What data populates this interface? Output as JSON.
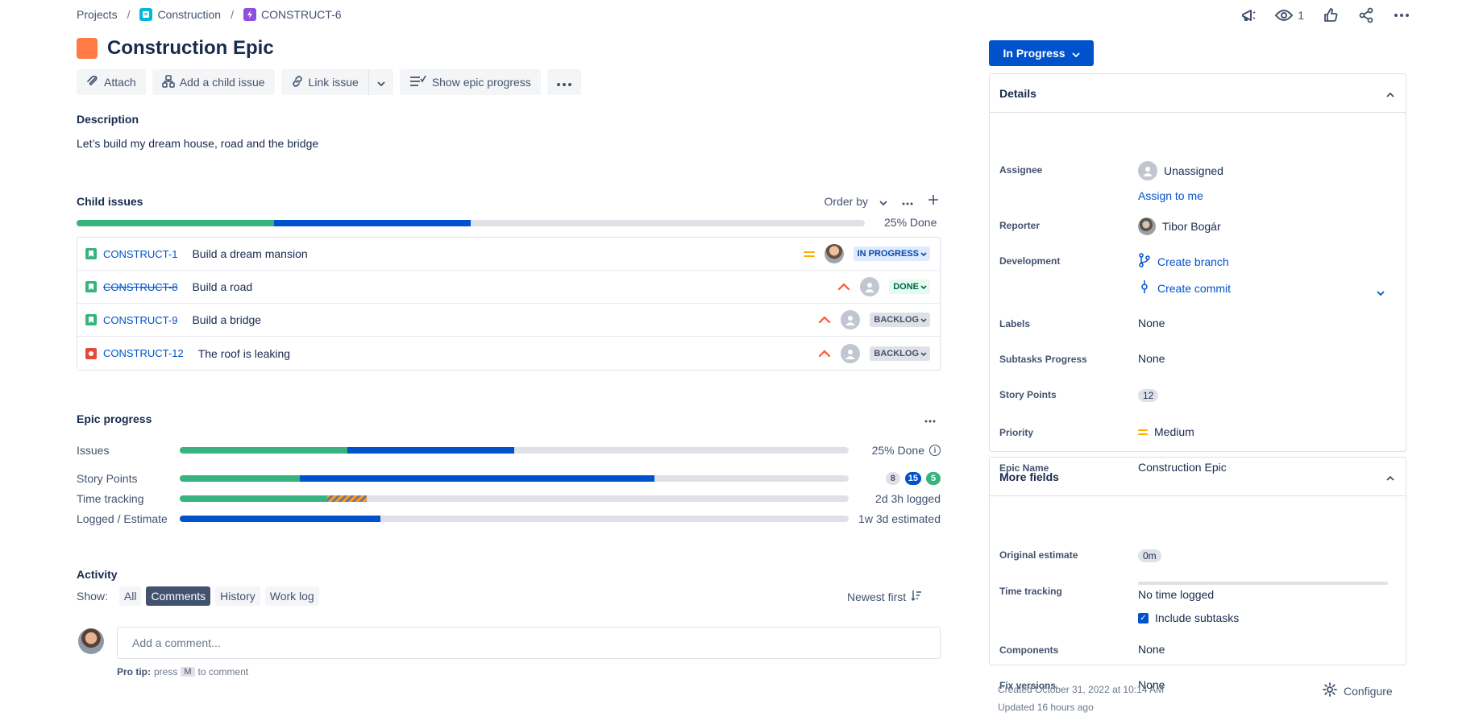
{
  "breadcrumb": {
    "projects": "Projects",
    "project": "Construction",
    "issue_key": "CONSTRUCT-6"
  },
  "header": {
    "watch_count": "1",
    "title": "Construction Epic",
    "icons": [
      "feedback-icon",
      "eye-icon",
      "thumbs-up-icon",
      "share-icon",
      "more-icon"
    ]
  },
  "toolbar": {
    "attach": "Attach",
    "add_child": "Add a child issue",
    "link_issue": "Link issue",
    "show_epic_progress": "Show epic progress"
  },
  "description": {
    "label": "Description",
    "text": "Let’s build my dream house, road and the bridge"
  },
  "child_issues": {
    "label": "Child issues",
    "order_by": "Order by",
    "done_label": "25% Done",
    "progress": {
      "done": 0.25,
      "in_progress": 0.25
    },
    "rows": [
      {
        "type": "story",
        "key": "CONSTRUCT-1",
        "summary": "Build a dream mansion",
        "priority": "medium",
        "assignee": "photo",
        "status": "IN PROGRESS",
        "resolved": false
      },
      {
        "type": "story",
        "key": "CONSTRUCT-8",
        "summary": "Build a road",
        "priority": "high",
        "assignee": "unassigned",
        "status": "DONE",
        "resolved": true
      },
      {
        "type": "story",
        "key": "CONSTRUCT-9",
        "summary": "Build a bridge",
        "priority": "high",
        "assignee": "unassigned",
        "status": "BACKLOG",
        "resolved": false
      },
      {
        "type": "bug",
        "key": "CONSTRUCT-12",
        "summary": "The roof is leaking",
        "priority": "high",
        "assignee": "unassigned",
        "status": "BACKLOG",
        "resolved": false
      }
    ]
  },
  "epic_progress": {
    "label": "Epic progress",
    "issues": {
      "label": "Issues",
      "done": 0.25,
      "in_progress": 0.25,
      "value": "25% Done"
    },
    "story_points": {
      "label": "Story Points",
      "done_frac": 0.18,
      "progress_frac": 0.53,
      "todo": "8",
      "in_progress": "15",
      "done": "5"
    },
    "time_tracking": {
      "label": "Time tracking",
      "logged_frac": 0.22,
      "over_frac": 0.06,
      "value": "2d 3h logged"
    },
    "logged_estimate": {
      "label": "Logged / Estimate",
      "frac": 0.3,
      "value": "1w 3d estimated"
    }
  },
  "activity": {
    "label": "Activity",
    "show": "Show:",
    "filters": [
      "All",
      "Comments",
      "History",
      "Work log"
    ],
    "active_filter": "Comments",
    "sort": "Newest first",
    "comment_placeholder": "Add a comment...",
    "protip_bold": "Pro tip:",
    "protip_press": "press",
    "protip_key": "M",
    "protip_rest": "to comment"
  },
  "sidebar": {
    "status": "In Progress",
    "details": {
      "title": "Details",
      "assignee_label": "Assignee",
      "assignee": "Unassigned",
      "assign_to_me": "Assign to me",
      "reporter_label": "Reporter",
      "reporter": "Tibor Bogár",
      "development_label": "Development",
      "create_branch": "Create branch",
      "create_commit": "Create commit",
      "labels_label": "Labels",
      "labels": "None",
      "subtasks_label": "Subtasks Progress",
      "subtasks": "None",
      "story_points_label": "Story Points",
      "story_points": "12",
      "priority_label": "Priority",
      "priority": "Medium",
      "epic_name_label": "Epic Name",
      "epic_name": "Construction Epic"
    },
    "more_fields": {
      "title": "More fields",
      "original_estimate_label": "Original estimate",
      "original_estimate": "0m",
      "time_tracking_label": "Time tracking",
      "time_tracking": "No time logged",
      "include_subtasks": "Include subtasks",
      "components_label": "Components",
      "components": "None",
      "fix_versions_label": "Fix versions",
      "fix_versions": "None"
    },
    "created": "Created October 31, 2022 at 10:14 AM",
    "updated": "Updated 16 hours ago",
    "configure": "Configure"
  },
  "colors": {
    "accent": "#0052cc",
    "done": "#36b37e",
    "epic": "#ff7a45",
    "bug": "#e5493a",
    "medium_priority": "#ffab00",
    "high_priority": "#ff5630"
  }
}
